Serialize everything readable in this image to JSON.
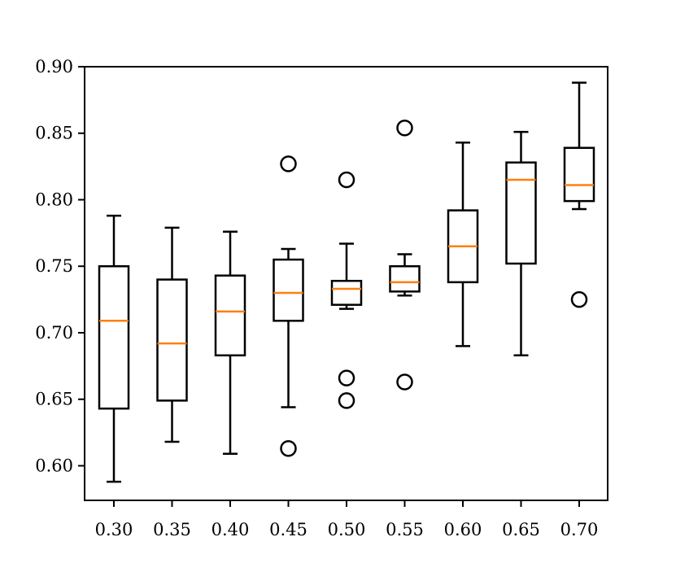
{
  "chart_data": {
    "type": "box",
    "title": "",
    "xlabel": "",
    "ylabel": "",
    "categories": [
      "0.30",
      "0.35",
      "0.40",
      "0.45",
      "0.50",
      "0.55",
      "0.60",
      "0.65",
      "0.70"
    ],
    "ylim": [
      0.574,
      0.9
    ],
    "y_ticks": [
      0.6,
      0.65,
      0.7,
      0.75,
      0.8,
      0.85,
      0.9
    ],
    "y_tick_labels": [
      "0.60",
      "0.65",
      "0.70",
      "0.75",
      "0.80",
      "0.85",
      "0.90"
    ],
    "grid": false,
    "boxes": [
      {
        "category": "0.30",
        "whisker_low": 0.588,
        "q1": 0.643,
        "median": 0.709,
        "q3": 0.75,
        "whisker_high": 0.788,
        "outliers": []
      },
      {
        "category": "0.35",
        "whisker_low": 0.618,
        "q1": 0.649,
        "median": 0.692,
        "q3": 0.74,
        "whisker_high": 0.779,
        "outliers": []
      },
      {
        "category": "0.40",
        "whisker_low": 0.609,
        "q1": 0.683,
        "median": 0.716,
        "q3": 0.743,
        "whisker_high": 0.776,
        "outliers": []
      },
      {
        "category": "0.45",
        "whisker_low": 0.644,
        "q1": 0.709,
        "median": 0.73,
        "q3": 0.755,
        "whisker_high": 0.763,
        "outliers": [
          0.827,
          0.613
        ]
      },
      {
        "category": "0.50",
        "whisker_low": 0.718,
        "q1": 0.721,
        "median": 0.733,
        "q3": 0.739,
        "whisker_high": 0.767,
        "outliers": [
          0.815,
          0.666,
          0.649
        ]
      },
      {
        "category": "0.55",
        "whisker_low": 0.728,
        "q1": 0.731,
        "median": 0.738,
        "q3": 0.75,
        "whisker_high": 0.759,
        "outliers": [
          0.854,
          0.663
        ]
      },
      {
        "category": "0.60",
        "whisker_low": 0.69,
        "q1": 0.738,
        "median": 0.765,
        "q3": 0.792,
        "whisker_high": 0.843,
        "outliers": []
      },
      {
        "category": "0.65",
        "whisker_low": 0.683,
        "q1": 0.752,
        "median": 0.815,
        "q3": 0.828,
        "whisker_high": 0.851,
        "outliers": []
      },
      {
        "category": "0.70",
        "whisker_low": 0.793,
        "q1": 0.799,
        "median": 0.811,
        "q3": 0.839,
        "whisker_high": 0.888,
        "outliers": [
          0.725
        ]
      }
    ],
    "colors": {
      "box": "#000000",
      "median": "#ff7f0e",
      "outlier_edge": "#000000",
      "outlier_fill": "none"
    }
  }
}
